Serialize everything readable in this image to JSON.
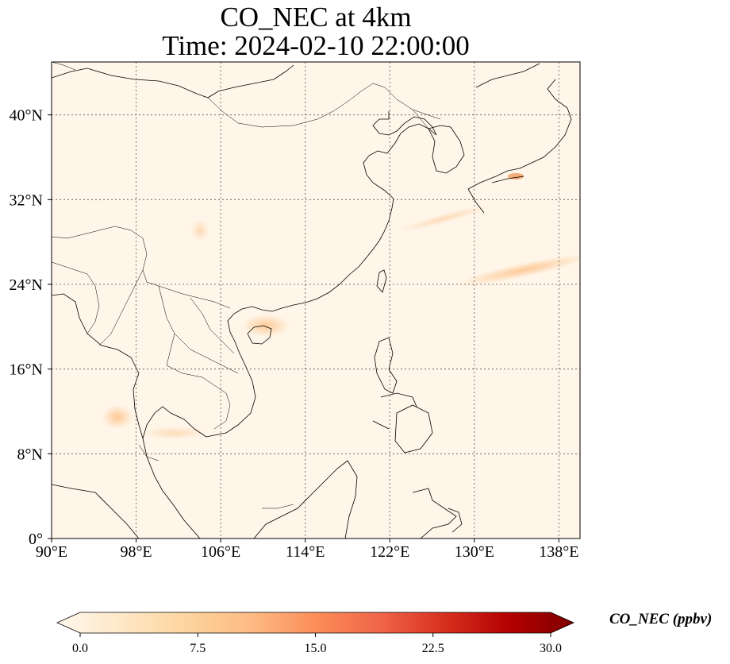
{
  "title": {
    "line1": "CO_NEC at 4km",
    "line2": "Time: 2024-02-10 22:00:00"
  },
  "map": {
    "extent": {
      "lon": [
        90,
        140
      ],
      "lat": [
        0,
        45
      ]
    },
    "gridlines": "dotted",
    "lon_ticks": [
      {
        "value": 90,
        "label": "90°E"
      },
      {
        "value": 98,
        "label": "98°E"
      },
      {
        "value": 106,
        "label": "106°E"
      },
      {
        "value": 114,
        "label": "114°E"
      },
      {
        "value": 122,
        "label": "122°E"
      },
      {
        "value": 130,
        "label": "130°E"
      },
      {
        "value": 138,
        "label": "138°E"
      }
    ],
    "lat_ticks": [
      {
        "value": 0,
        "label": "0°"
      },
      {
        "value": 8,
        "label": "8°N"
      },
      {
        "value": 16,
        "label": "16°N"
      },
      {
        "value": 24,
        "label": "24°N"
      },
      {
        "value": 32,
        "label": "32°N"
      },
      {
        "value": 40,
        "label": "40°N"
      }
    ],
    "background_color": "#fff5e8",
    "coastline_color": "#000000"
  },
  "colorbar": {
    "label": "CO_NEC (ppbv)",
    "colormap": "OrRd",
    "min": 0.0,
    "max": 30.0,
    "extend": "both",
    "ticks": [
      {
        "value": 0.0,
        "label": "0.0"
      },
      {
        "value": 7.5,
        "label": "7.5"
      },
      {
        "value": 15.0,
        "label": "15.0"
      },
      {
        "value": 22.5,
        "label": "22.5"
      },
      {
        "value": 30.0,
        "label": "30.0"
      }
    ],
    "colors": [
      "#fff7ec",
      "#fee8c8",
      "#fdd49e",
      "#fdbb84",
      "#fc8d59",
      "#ef6548",
      "#d7301f",
      "#b30000",
      "#7f0000"
    ]
  }
}
